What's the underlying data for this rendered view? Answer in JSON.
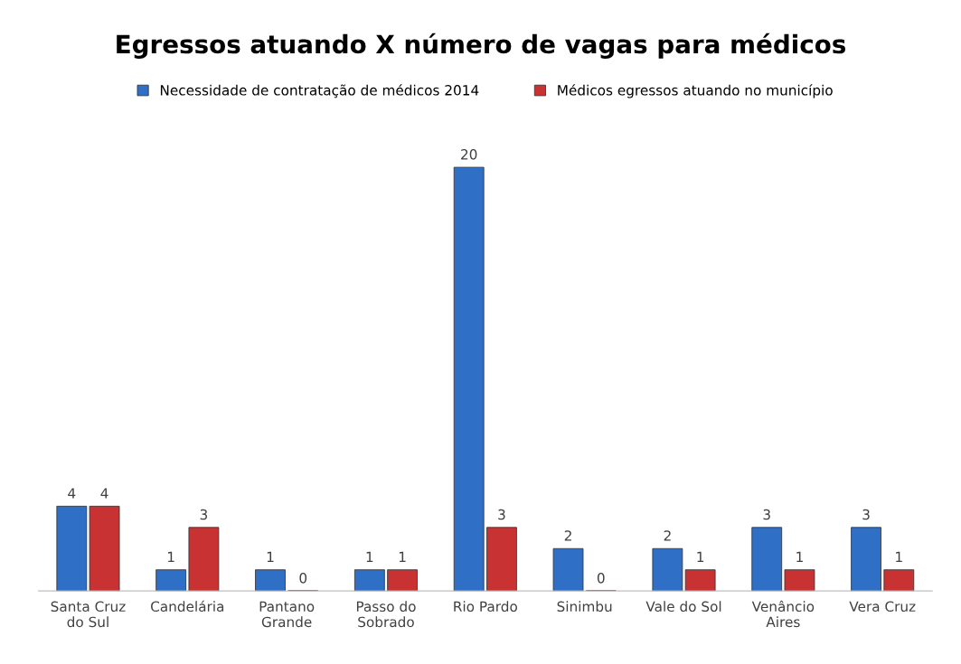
{
  "chart_data": {
    "type": "bar",
    "title": "Egressos atuando X número de vagas para médicos",
    "categories": [
      "Santa Cruz do Sul",
      "Candelária",
      "Pantano Grande",
      "Passo do Sobrado",
      "Rio Pardo",
      "Sinimbu",
      "Vale do Sol",
      "Venâncio Aires",
      "Vera Cruz"
    ],
    "series": [
      {
        "name": "Necessidade de contratação de médicos 2014",
        "color": "#2f6fc6",
        "values": [
          4,
          1,
          1,
          1,
          20,
          2,
          2,
          3,
          3
        ]
      },
      {
        "name": "Médicos egressos atuando no município",
        "color": "#c83232",
        "values": [
          4,
          3,
          0,
          1,
          3,
          0,
          1,
          1,
          1
        ]
      }
    ],
    "data_labels": true,
    "legend": "top",
    "tick_labels": "x",
    "grid": false
  }
}
